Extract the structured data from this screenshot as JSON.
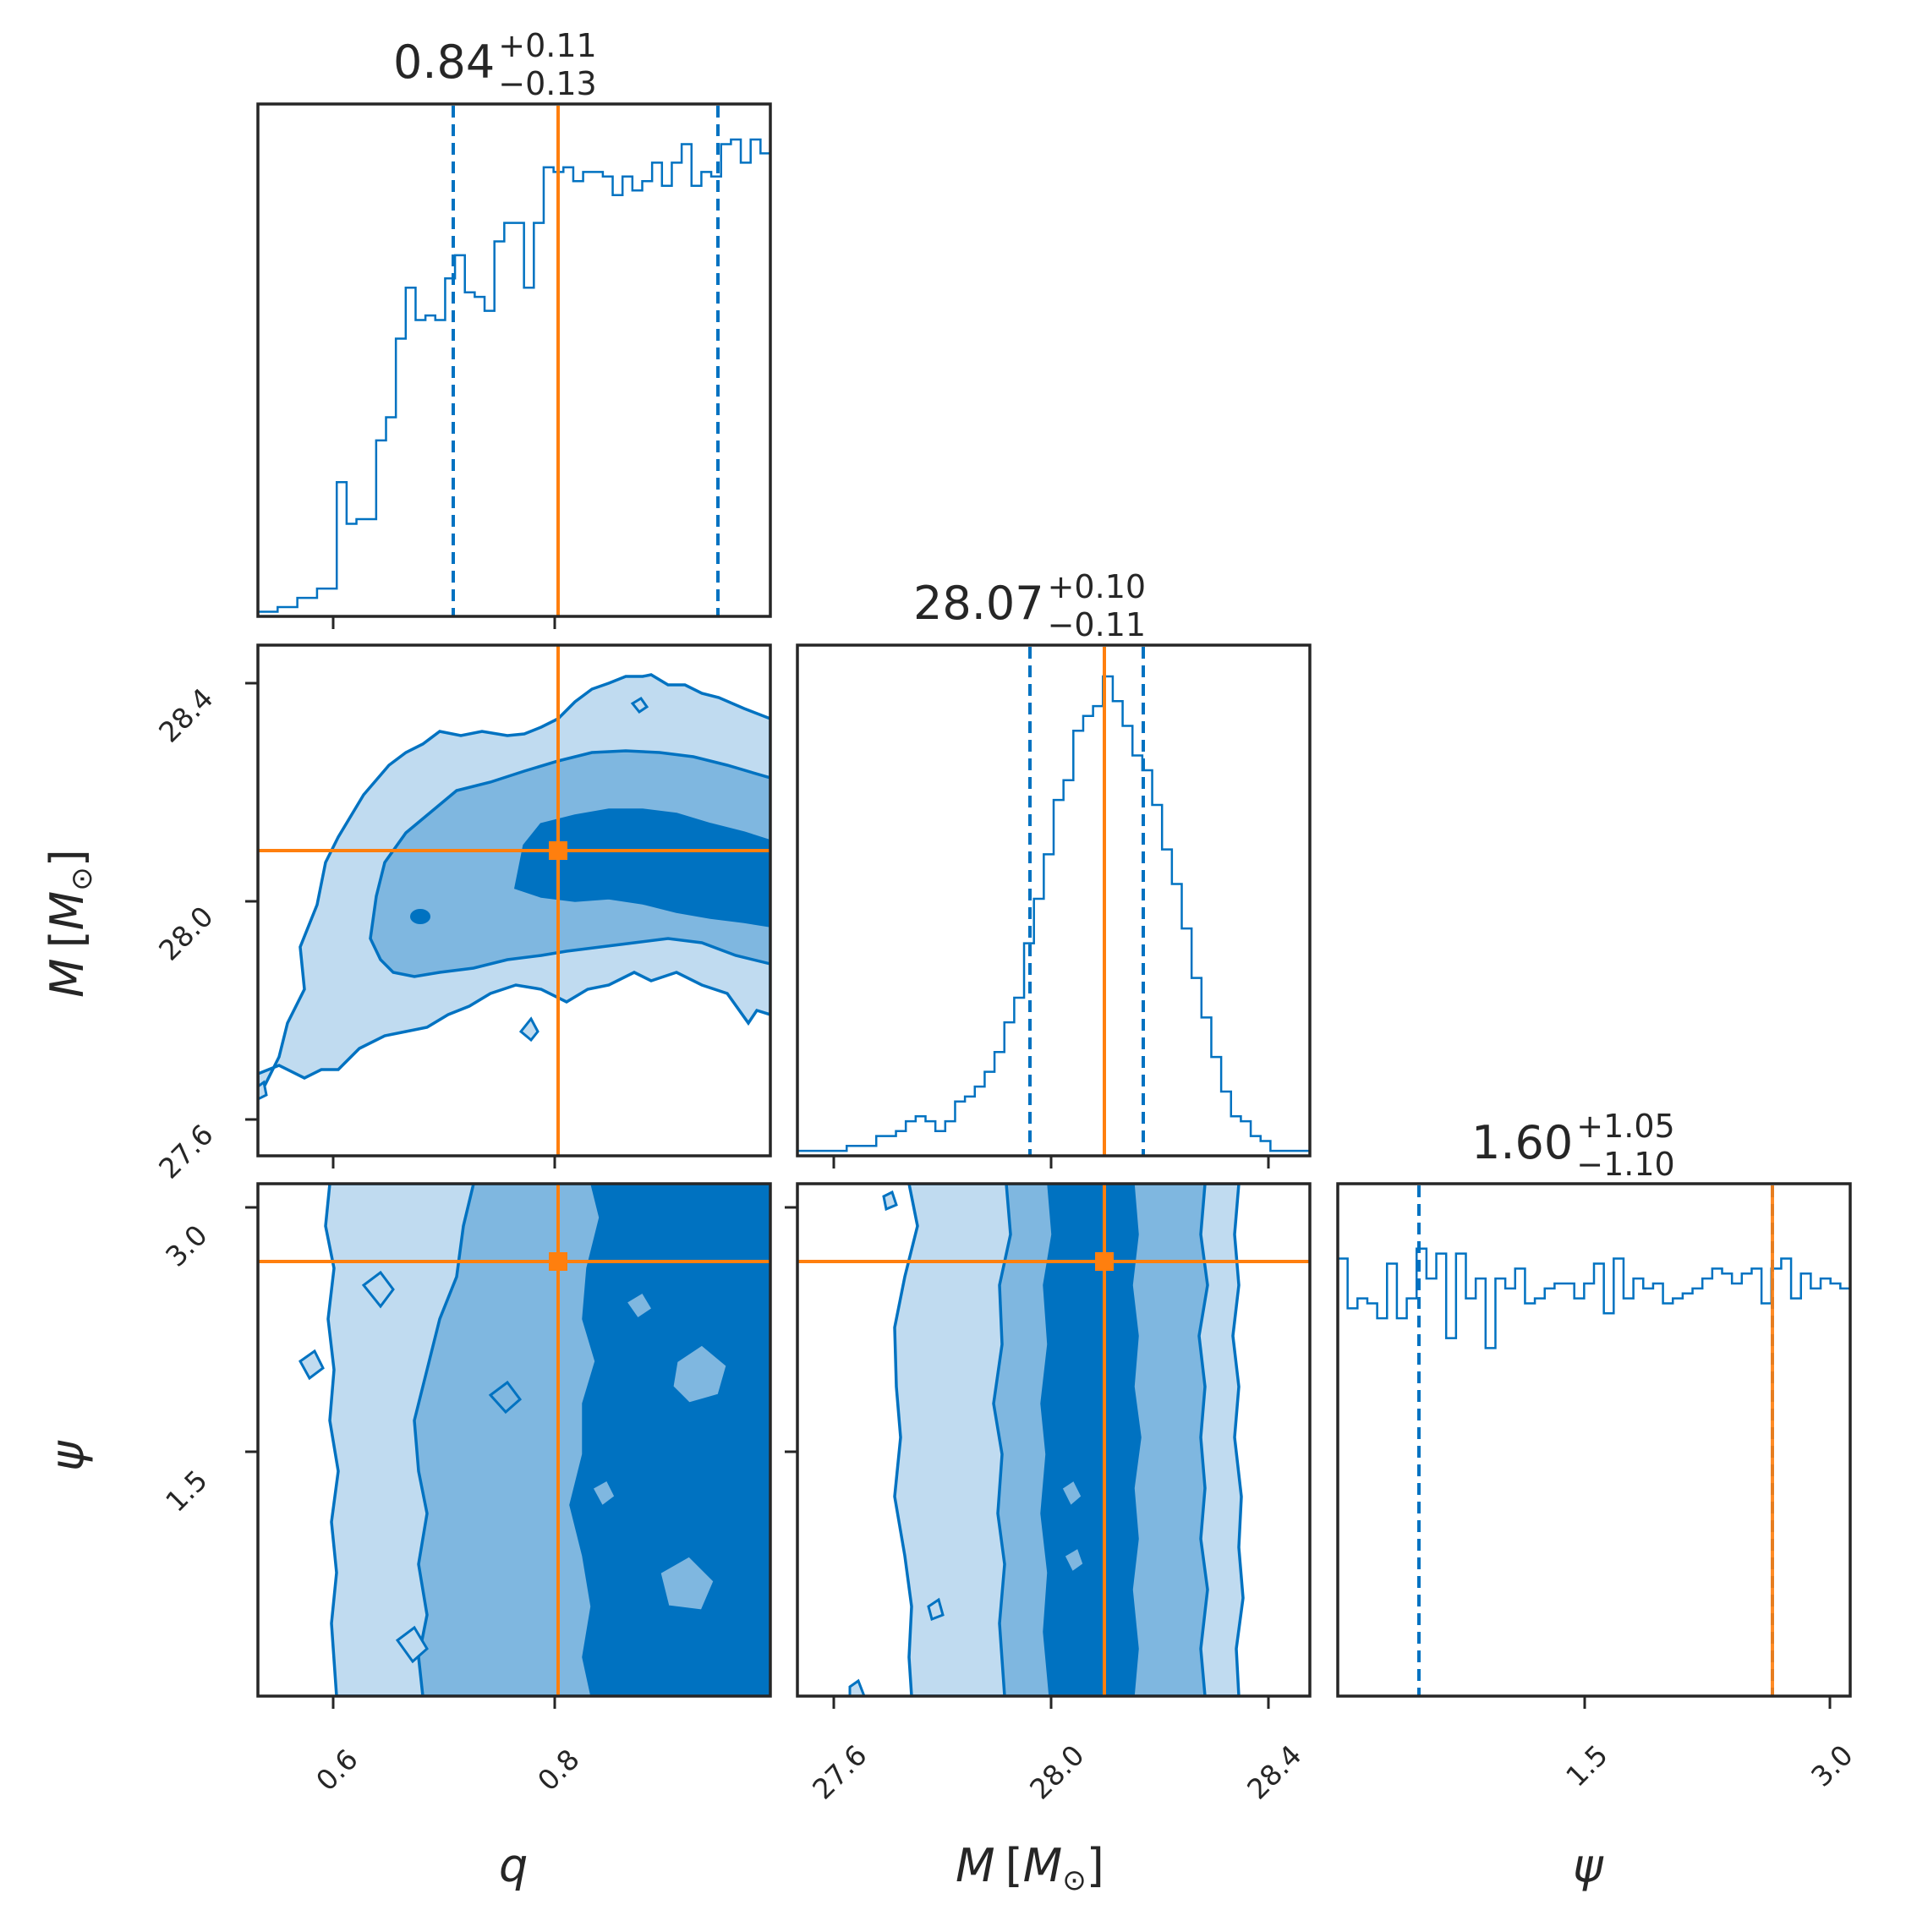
{
  "chart_data": {
    "type": "corner",
    "parameters": [
      {
        "key": "q",
        "label_main": "q",
        "label_unit": "",
        "range": [
          0.535,
          0.998
        ],
        "ticks": [
          0.6,
          0.8
        ],
        "tick_labels": [
          "0.6",
          "0.8"
        ],
        "median": 0.84,
        "err_plus": "+0.11",
        "err_minus": "−0.13",
        "title_value": "0.84",
        "quantile_low": 0.71,
        "quantile_high": 0.95,
        "truth": 0.805
      },
      {
        "key": "M",
        "label_main": "M",
        "label_unit": "[M⊙]",
        "range": [
          27.525,
          28.468
        ],
        "ticks": [
          27.6,
          28.0,
          28.4
        ],
        "tick_labels": [
          "27.6",
          "28.0",
          "28.4"
        ],
        "median": 28.07,
        "err_plus": "+0.10",
        "err_minus": "−0.11",
        "title_value": "28.07",
        "quantile_low": 27.96,
        "quantile_high": 28.17,
        "truth": 28.09
      },
      {
        "key": "psi",
        "label_main": "ψ",
        "label_unit": "",
        "range": [
          0.0,
          3.142
        ],
        "ticks": [
          1.5,
          3.0
        ],
        "tick_labels": [
          "1.5",
          "3.0"
        ],
        "median": 1.6,
        "err_plus": "+1.05",
        "err_minus": "−1.10",
        "title_value": "1.60",
        "quantile_low": 0.5,
        "quantile_high": 2.65,
        "truth": 2.65
      }
    ],
    "titles": [
      {
        "value": "0.84",
        "plus": "+0.11",
        "minus": "−0.13"
      },
      {
        "value": "28.07",
        "plus": "+0.10",
        "minus": "−0.11"
      },
      {
        "value": "1.60",
        "plus": "+1.05",
        "minus": "−1.10"
      }
    ],
    "axis_labels": {
      "q": "q",
      "M": "M [M⊙]",
      "psi": "ψ"
    },
    "hist_q": [
      0.01,
      0.01,
      0.02,
      0.02,
      0.04,
      0.04,
      0.06,
      0.06,
      0.29,
      0.2,
      0.21,
      0.21,
      0.38,
      0.43,
      0.6,
      0.71,
      0.64,
      0.65,
      0.64,
      0.73,
      0.78,
      0.7,
      0.69,
      0.66,
      0.81,
      0.85,
      0.85,
      0.71,
      0.85,
      0.97,
      0.96,
      0.97,
      0.94,
      0.96,
      0.96,
      0.95,
      0.91,
      0.95,
      0.92,
      0.94,
      0.98,
      0.93,
      0.98,
      1.02,
      0.93,
      0.96,
      0.95,
      1.02,
      1.03,
      0.98,
      1.03,
      1.0
    ],
    "hist_M": [
      0.01,
      0.01,
      0.01,
      0.01,
      0.01,
      0.02,
      0.02,
      0.02,
      0.04,
      0.04,
      0.05,
      0.07,
      0.08,
      0.07,
      0.05,
      0.07,
      0.11,
      0.12,
      0.14,
      0.17,
      0.21,
      0.27,
      0.32,
      0.43,
      0.52,
      0.61,
      0.72,
      0.76,
      0.86,
      0.89,
      0.91,
      0.97,
      0.92,
      0.87,
      0.81,
      0.78,
      0.71,
      0.62,
      0.55,
      0.46,
      0.36,
      0.28,
      0.2,
      0.13,
      0.08,
      0.07,
      0.04,
      0.03,
      0.01,
      0.01,
      0.01,
      0.01
    ],
    "hist_psi": [
      0.88,
      0.78,
      0.8,
      0.79,
      0.76,
      0.87,
      0.76,
      0.8,
      0.9,
      0.84,
      0.89,
      0.72,
      0.89,
      0.8,
      0.84,
      0.7,
      0.84,
      0.82,
      0.86,
      0.79,
      0.8,
      0.82,
      0.83,
      0.83,
      0.8,
      0.83,
      0.87,
      0.77,
      0.88,
      0.8,
      0.84,
      0.82,
      0.83,
      0.79,
      0.8,
      0.81,
      0.82,
      0.84,
      0.86,
      0.85,
      0.83,
      0.85,
      0.86,
      0.79,
      0.86,
      0.88,
      0.8,
      0.85,
      0.82,
      0.84,
      0.83,
      0.82
    ],
    "colors": {
      "posterior": "#0072c1",
      "truth": "#ff7f0e",
      "fill_1sigma": "#0072c1",
      "fill_2sigma": "#7fb7e0",
      "fill_3sigma": "#c0dbf0",
      "frame": "#262626"
    },
    "contour_levels": [
      "1σ",
      "2σ",
      "3σ"
    ]
  }
}
